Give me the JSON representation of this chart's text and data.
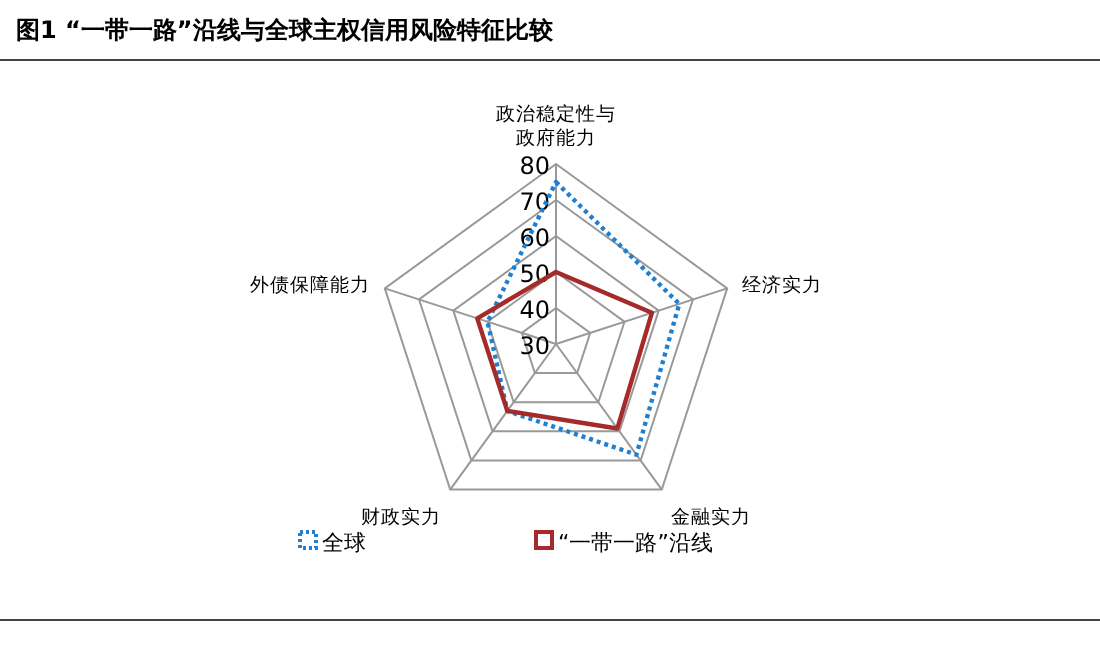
{
  "chart_data": {
    "type": "radar",
    "title": "图1 “一带一路”沿线与全球主权信用风险特征比较",
    "categories": [
      "政治稳定性与政府能力",
      "经济实力",
      "金融实力",
      "财政实力",
      "外债保障能力"
    ],
    "ylim": [
      30,
      80
    ],
    "yticks": [
      30,
      40,
      50,
      60,
      70,
      80
    ],
    "grid": true,
    "legend": "bottom",
    "series": [
      {
        "name": "全球",
        "color": "#1f7fd0",
        "line_style": "dotted",
        "values": [
          75,
          66,
          68,
          53,
          50
        ]
      },
      {
        "name": "“一带一路”沿线",
        "color": "#a52a2a",
        "line_style": "solid",
        "values": [
          50,
          58,
          59,
          53,
          53
        ]
      }
    ]
  }
}
